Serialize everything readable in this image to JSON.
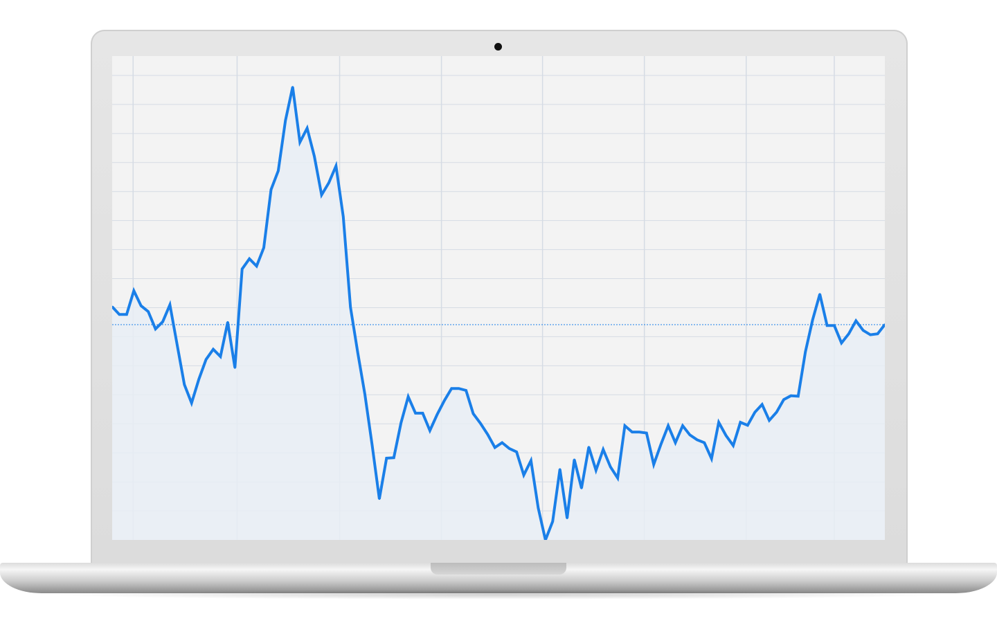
{
  "chart_data": {
    "type": "area",
    "title": "",
    "xlabel": "",
    "ylabel": "",
    "x": [
      0,
      1,
      2,
      3,
      4,
      5,
      6,
      7,
      8,
      9,
      10,
      11,
      12,
      13,
      14,
      15,
      16,
      17,
      18,
      19,
      20,
      21,
      22,
      23,
      24,
      25,
      26,
      27,
      28,
      29,
      30,
      31,
      32,
      33,
      34,
      35,
      36,
      37,
      38,
      39,
      40,
      41,
      42,
      43,
      44,
      45,
      46,
      47,
      48,
      49,
      50,
      51,
      52,
      53,
      54,
      55,
      56,
      57,
      58,
      59,
      60,
      61,
      62,
      63,
      64,
      65,
      66,
      67,
      68,
      69,
      70,
      71,
      72,
      73,
      74,
      75,
      76,
      77,
      78,
      79,
      80,
      81,
      82,
      83,
      84,
      85,
      86,
      87,
      88,
      89,
      90,
      91,
      92,
      93,
      94,
      95,
      96,
      97,
      98,
      99,
      100,
      101,
      102,
      103,
      104,
      105,
      106,
      107
    ],
    "xlim": [
      0,
      107
    ],
    "ylim": [
      0,
      100
    ],
    "series": [
      {
        "name": "",
        "color": "#1a7fe8",
        "fill": "#e8edf5",
        "values": [
          48.2,
          46.6,
          46.6,
          51.5,
          48.4,
          47.2,
          43.6,
          45.1,
          48.6,
          40.3,
          32.1,
          28.3,
          33.2,
          37.3,
          39.4,
          37.9,
          45.0,
          35.6,
          56.0,
          58.1,
          56.6,
          60.4,
          72.4,
          76.3,
          86.7,
          93.6,
          82.2,
          85.1,
          79.3,
          71.3,
          73.8,
          77.3,
          66.8,
          48.1,
          38.8,
          30.1,
          19.6,
          8.5,
          16.9,
          17.0,
          24.2,
          29.6,
          26.2,
          26.2,
          22.6,
          25.9,
          28.8,
          31.3,
          31.3,
          30.9,
          26.1,
          24.1,
          21.8,
          19.1,
          20.1,
          18.9,
          18.2,
          13.4,
          16.4,
          6.6,
          0.0,
          3.8,
          14.6,
          4.5,
          16.6,
          10.7,
          19.2,
          14.4,
          18.7,
          15.1,
          12.8,
          23.6,
          22.3,
          22.3,
          22.1,
          15.6,
          19.8,
          23.6,
          20.1,
          23.6,
          21.7,
          20.7,
          20.1,
          16.8,
          24.3,
          21.6,
          19.5,
          24.3,
          23.7,
          26.4,
          28.0,
          24.7,
          26.4,
          29.0,
          29.8,
          29.7,
          38.9,
          45.5,
          50.8,
          44.3,
          44.3,
          40.7,
          42.6,
          45.3,
          43.3,
          42.4,
          42.6,
          44.5
        ]
      }
    ],
    "reference_line": {
      "y": 44.5,
      "style": "dotted"
    },
    "grid": true,
    "grid_x": [
      2.9,
      17.3,
      31.5,
      45.6,
      59.6,
      73.7,
      87.8,
      100.0
    ],
    "grid_y": [
      6,
      12,
      18,
      24,
      30,
      36,
      42,
      48,
      54,
      60,
      66,
      72,
      78,
      84,
      90,
      96
    ],
    "legend": "none"
  }
}
